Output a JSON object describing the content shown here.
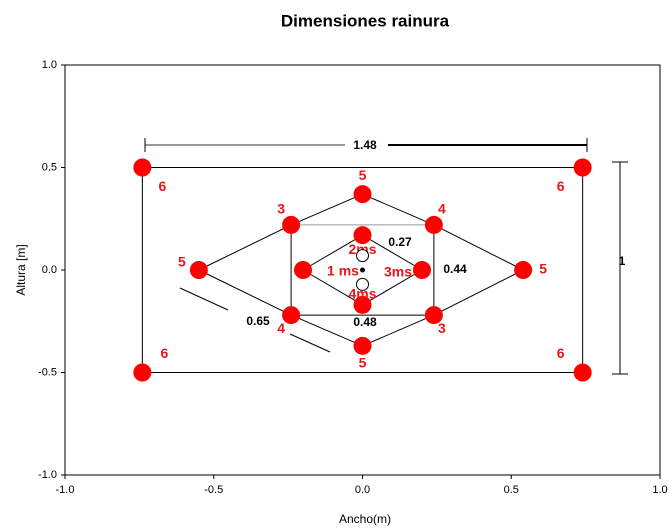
{
  "chart_data": {
    "type": "scatter",
    "title": "Dimensiones rainura",
    "xlabel": "Ancho(m)",
    "ylabel": "Altura [m]",
    "xlim": [
      -1.0,
      1.0
    ],
    "ylim": [
      -1.0,
      1.0
    ],
    "xticks": [
      {
        "value": -1.0,
        "label": "-1.0"
      },
      -0.5,
      {
        "value": 0.0,
        "label": "0.0"
      },
      0.5,
      {
        "value": 1.0,
        "label": "1.0"
      }
    ],
    "yticks": [
      {
        "value": -1.0,
        "label": "-1.0"
      },
      -0.5,
      {
        "value": 0.0,
        "label": "0.0"
      },
      0.5,
      {
        "value": 1.0,
        "label": "1.0"
      }
    ],
    "color": "#ff0000",
    "series": [
      {
        "x": [
          -0.74,
          0.74,
          0.74,
          -0.74
        ],
        "y": [
          0.5,
          0.5,
          -0.5,
          -0.5
        ],
        "labels": [
          "6",
          "6",
          "6",
          "6"
        ]
      },
      {
        "x": [
          -0.55,
          -0.24,
          0,
          0.24,
          0.54,
          0.24,
          0,
          -0.24
        ],
        "y": [
          0,
          0.22,
          0.37,
          0.22,
          0,
          -0.22,
          -0.37,
          -0.22
        ],
        "labels": [
          "5",
          "3",
          "5",
          "4",
          "5",
          "3",
          "5",
          "4"
        ]
      },
      {
        "x": [
          0,
          0.2,
          0,
          -0.2
        ],
        "y": [
          0.17,
          0,
          -0.17,
          0
        ],
        "labels": [
          "2ms",
          "3ms",
          "4ms",
          "1 ms"
        ]
      },
      {
        "x": [
          0,
          0,
          0
        ],
        "y": [
          0.07,
          -0.07,
          0
        ]
      }
    ],
    "annotations": [
      "1.48",
      "1",
      "0.65",
      "0.27",
      "0.44",
      "0.48"
    ]
  }
}
